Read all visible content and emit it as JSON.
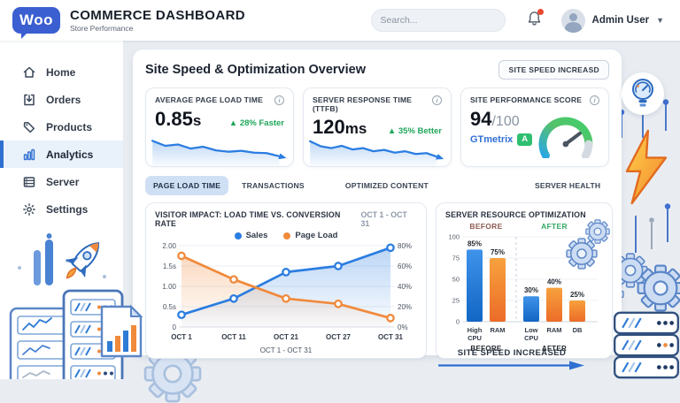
{
  "header": {
    "logo_text": "Woo",
    "title": "COMMERCE DASHBOARD",
    "subtitle": "Store Performance",
    "search_placeholder": "Search...",
    "user_name": "Admin User"
  },
  "sidebar": {
    "items": [
      {
        "label": "Home",
        "icon": "home-icon",
        "active": false
      },
      {
        "label": "Orders",
        "icon": "orders-icon",
        "active": false
      },
      {
        "label": "Products",
        "icon": "products-icon",
        "active": false
      },
      {
        "label": "Analytics",
        "icon": "analytics-icon",
        "active": true
      },
      {
        "label": "Server",
        "icon": "server-icon",
        "active": false
      },
      {
        "label": "Settings",
        "icon": "settings-icon",
        "active": false
      }
    ]
  },
  "main": {
    "heading": "Site Speed & Optimization Overview",
    "top_button": "SITE SPEED INCREASD",
    "kpis": [
      {
        "label": "AVERAGE PAGE LOAD TIME",
        "value": "0.85",
        "unit": "s",
        "delta": "▲ 28% Faster"
      },
      {
        "label": "SERVER RESPONSE TIME (TTFB)",
        "value": "120",
        "unit": "ms",
        "delta": "▲ 35% Better"
      },
      {
        "label": "SITE PERFORMANCE SCORE",
        "score": "94",
        "score_max": "/100",
        "vendor": "GTmetrix",
        "grade": "A"
      }
    ],
    "tabs": [
      {
        "label": "PAGE LOAD TIME",
        "active": true
      },
      {
        "label": "TRANSACTIONS",
        "active": false
      },
      {
        "label": "OPTIMIZED CONTENT",
        "active": false
      },
      {
        "label": "SERVER HEALTH",
        "active": false
      }
    ],
    "bottom_banner": "SITE SPEED INCREASED"
  },
  "colors": {
    "accent_blue": "#2f6fd2",
    "line_blue": "#2b7de1",
    "line_orange": "#f08a3c",
    "green": "#1ea65a",
    "grade_green": "#2fbf71"
  },
  "chart_data": {
    "impact_line": {
      "type": "line",
      "title": "VISITOR IMPACT: LOAD TIME VS. CONVERSION RATE",
      "date_range": "OCT 1 - OCT 31",
      "xlabel": "OCT 1 - OCT 31",
      "categories": [
        "OCT 1",
        "OCT 11",
        "OCT 21",
        "OCT 27",
        "OCT 31"
      ],
      "series": [
        {
          "name": "Sales",
          "axis": "right",
          "color": "#2b7de1",
          "values": [
            12,
            28,
            54,
            60,
            78
          ]
        },
        {
          "name": "Page Load",
          "axis": "left",
          "color": "#f08a3c",
          "values": [
            1.75,
            1.17,
            0.7,
            0.57,
            0.22
          ]
        }
      ],
      "left_axis": {
        "ticks": [
          "2.00",
          "1.5s",
          "1.00",
          "0.5s",
          "0"
        ],
        "max": 2,
        "min": 0
      },
      "right_axis": {
        "ticks": [
          "80%",
          "60%",
          "40%",
          "20%",
          "0%"
        ],
        "max": 80,
        "min": 0
      },
      "grid": true,
      "legend_position": "top-center"
    },
    "server_bars": {
      "type": "bar",
      "title": "SERVER RESOURCE OPTIMIZATION",
      "y_ticks": [
        100,
        75,
        50,
        25,
        0
      ],
      "ylim": [
        0,
        100
      ],
      "groups": [
        {
          "label": "BEFORE",
          "label_color": "#8d5a52",
          "bars": [
            {
              "label": "High CPU",
              "value": 85,
              "color": "blue"
            },
            {
              "label": "RAM",
              "value": 75,
              "color": "orange"
            }
          ]
        },
        {
          "label": "AFTER",
          "label_color": "#34a864",
          "bars": [
            {
              "label": "Low CPU",
              "value": 30,
              "color": "blue"
            },
            {
              "label": "RAM",
              "value": 40,
              "color": "orange"
            },
            {
              "label": "DB",
              "value": 25,
              "color": "orange"
            }
          ]
        }
      ]
    },
    "sparklines": {
      "page_load": {
        "color": "#2b7de1",
        "values": [
          82,
          60,
          66,
          48,
          56,
          40,
          34,
          38,
          30,
          28,
          14
        ]
      },
      "ttfb": {
        "color": "#2b7de1",
        "values": [
          80,
          58,
          50,
          60,
          44,
          50,
          36,
          42,
          30,
          36,
          24,
          28,
          12
        ]
      }
    },
    "gauge": {
      "type": "gauge",
      "value": 94,
      "max": 100,
      "grade": "A",
      "vendor": "GTmetrix"
    }
  }
}
